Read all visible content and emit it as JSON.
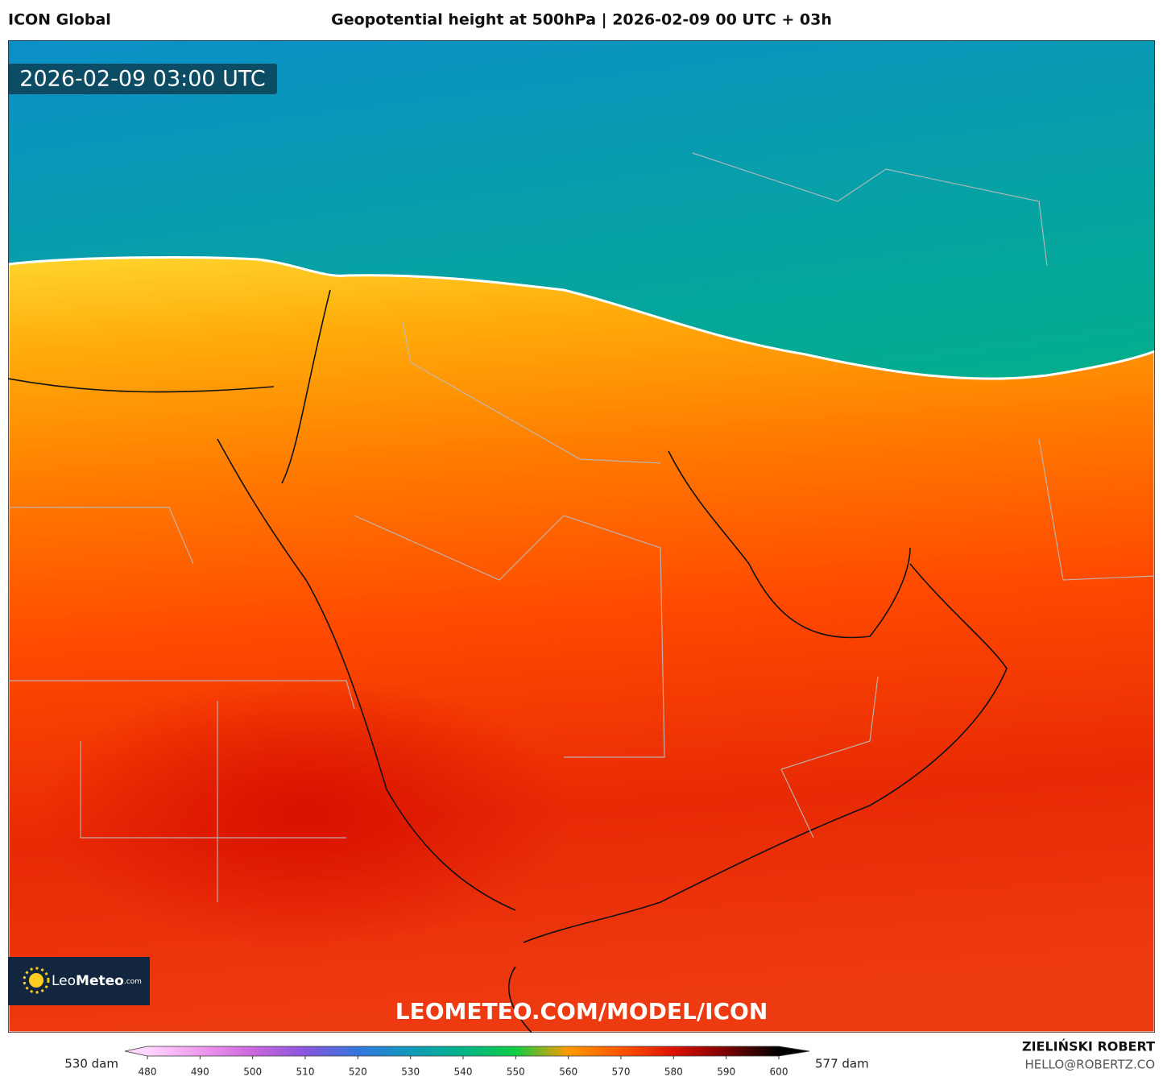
{
  "header": {
    "model": "ICON Global",
    "title": "Geopotential height at 500hPa | 2026-02-09 00 UTC + 03h"
  },
  "map": {
    "valid_time": "2026-02-09 03:00 UTC",
    "watermark": "LEOMETEO.COM/MODEL/ICON",
    "logo": {
      "brand": "Leo",
      "brand_bold": "Meteo",
      "suffix": ".com"
    }
  },
  "legend": {
    "min_label": "530 dam",
    "max_label": "577 dam",
    "ticks": [
      480,
      490,
      500,
      510,
      520,
      530,
      540,
      550,
      560,
      570,
      580,
      590,
      600
    ],
    "colors": [
      "#ffd6ff",
      "#ee99ee",
      "#cc66dd",
      "#8855dd",
      "#3377dd",
      "#1199bb",
      "#00b588",
      "#11cc44",
      "#ff9900",
      "#ff5500",
      "#dd1100",
      "#7a0000",
      "#000000"
    ]
  },
  "footer": {
    "author": "ZIELIŃSKI ROBERT",
    "contact": "HELLO@ROBERTZ.CO"
  }
}
